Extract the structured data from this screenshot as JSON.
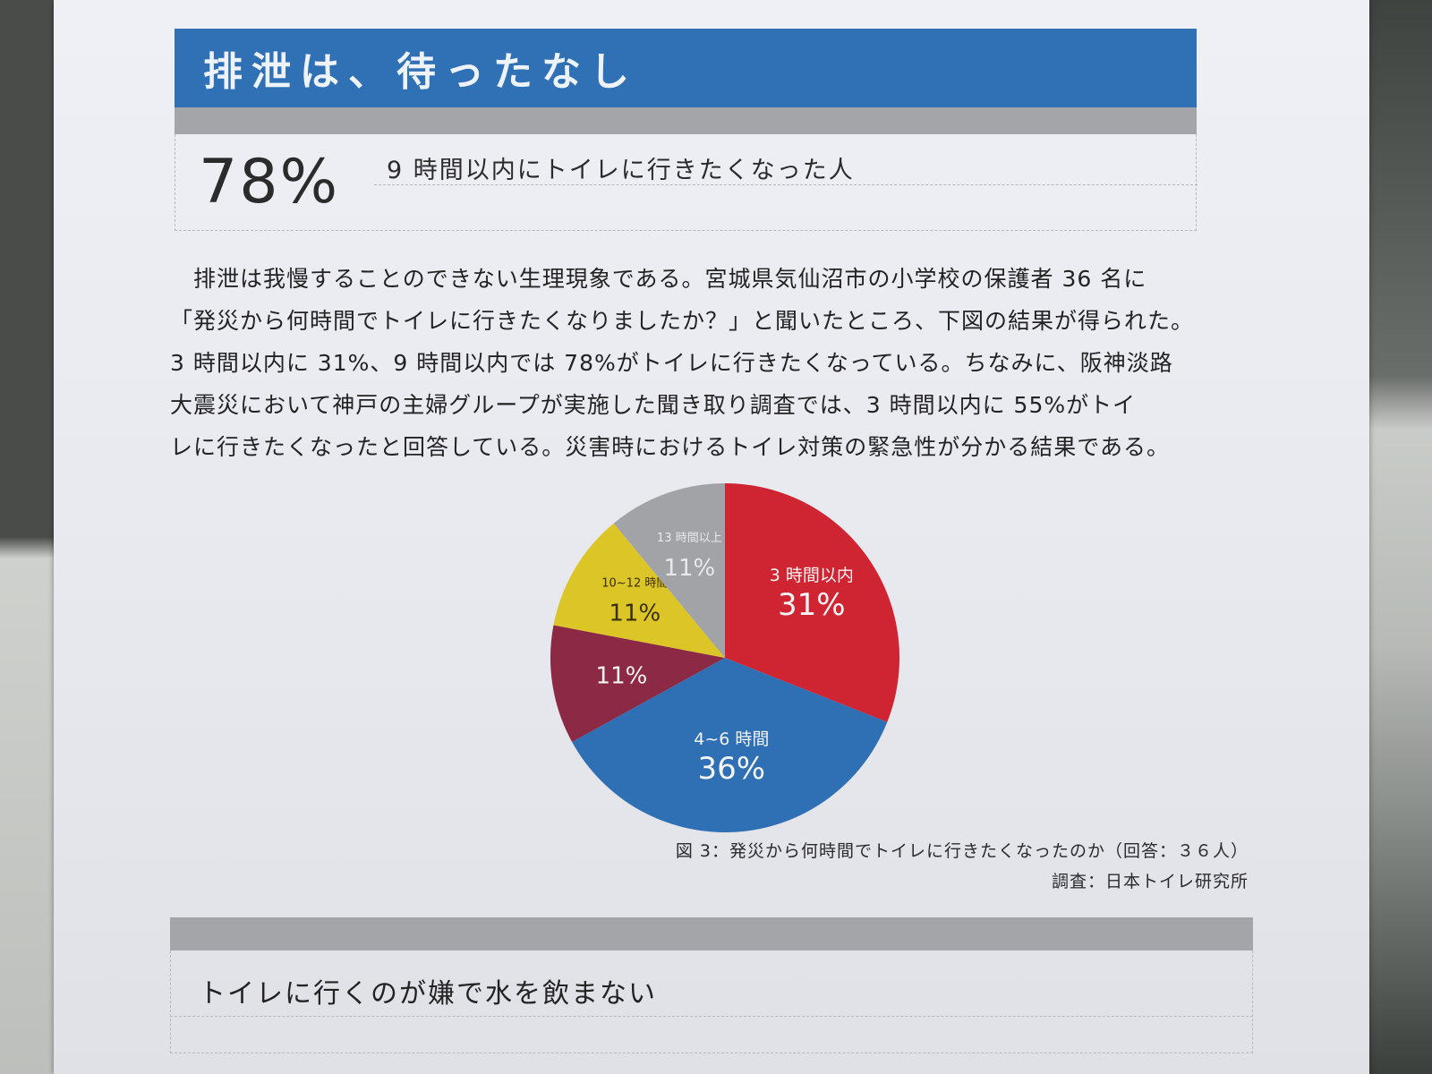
{
  "header": {
    "title": "排泄は、待ったなし"
  },
  "stat": {
    "value": "78%",
    "label": "9 時間以内にトイレに行きたくなった人"
  },
  "body": {
    "lines": [
      "　排泄は我慢することのできない生理現象である。宮城県気仙沼市の小学校の保護者 36 名に",
      "「発災から何時間でトイレに行きたくなりましたか？」と聞いたところ、下図の結果が得られた。",
      "3 時間以内に 31%、9 時間以内では 78%がトイレに行きたくなっている。ちなみに、阪神淡路",
      "大震災において神戸の主婦グループが実施した聞き取り調査では、3 時間以内に 55%がトイ",
      "レに行きたくなったと回答している。災害時におけるトイレ対策の緊急性が分かる結果である。"
    ]
  },
  "chart_data": {
    "type": "pie",
    "title": "",
    "slices": [
      {
        "label": "3 時間以内",
        "value": 31,
        "value_label": "31%",
        "color": "#cf2431"
      },
      {
        "label": "4~6 時間",
        "value": 36,
        "value_label": "36%",
        "color": "#2f6fb4"
      },
      {
        "label": "",
        "value": 11,
        "value_label": "11%",
        "color": "#8c2a45"
      },
      {
        "label": "10~12 時間",
        "value": 11,
        "value_label": "11%",
        "color": "#dcc527"
      },
      {
        "label": "13 時間以上",
        "value": 11,
        "value_label": "11%",
        "color": "#a2a3a6"
      }
    ]
  },
  "caption": {
    "figure": "図 3：発災から何時間でトイレに行きたくなったのか（回答：３６人）",
    "source": "調査：日本トイレ研究所"
  },
  "section2": {
    "title": "トイレに行くのが嫌で水を飲まない"
  }
}
